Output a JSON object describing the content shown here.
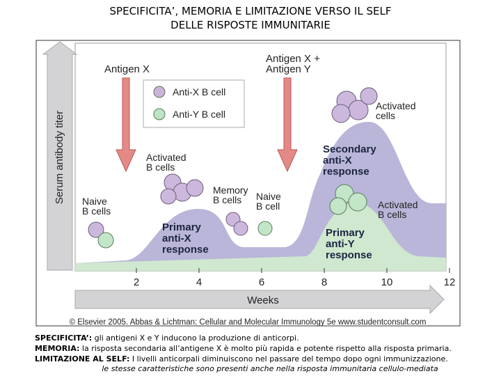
{
  "title": [
    "SPECIFICITA’, MEMORIA E LIMITAZIONE VERSO IL SELF",
    "DELLE RISPOSTE IMMUNITARIE"
  ],
  "figure": {
    "y_axis_label": "Serum antibody titer",
    "x_axis_label": "Weeks",
    "xlim": [
      0,
      12
    ],
    "xticks": [
      2,
      4,
      6,
      8,
      10,
      12
    ],
    "antigen_x": "Antigen X",
    "antigen_xy": [
      "Antigen X +",
      "Antigen Y"
    ],
    "legend": [
      "Anti-X B cell",
      "Anti-Y B cell"
    ],
    "labels": {
      "naive1": [
        "Naive",
        "B cells"
      ],
      "activated1": [
        "Activated",
        "B cells"
      ],
      "memory": [
        "Memory",
        "B cells"
      ],
      "naive2": [
        "Naive",
        "B cell"
      ],
      "activated2": [
        "Activated",
        "cells"
      ],
      "activated3": [
        "Activated",
        "B cells"
      ],
      "primary_x": [
        "Primary",
        "anti-X",
        "response"
      ],
      "secondary_x": [
        "Secondary",
        "anti-X",
        "response"
      ],
      "primary_y": [
        "Primary",
        "anti-Y",
        "response"
      ]
    },
    "copyright": "© Elsevier 2005. Abbas & Lichtman: Cellular and Molecular Immunology 5e www.studentconsult.com"
  },
  "captions": [
    {
      "term": "SPECIFICITA’:",
      "text": "gli antigeni X e Y inducono la produzione di anticorpi."
    },
    {
      "term": "MEMORIA:",
      "text": "la risposta secondaria all’antigene X è molto più rapida e potente rispetto alla risposta primaria."
    },
    {
      "term": "LIMITAZIONE AL SELF:",
      "text": "I livelli anticorpali diminuiscono nel passare del tempo dopo ogni immunizzazione."
    }
  ],
  "note": "le stesse caratteristiche sono presenti anche nella risposta immunitaria cellulo-mediata"
}
